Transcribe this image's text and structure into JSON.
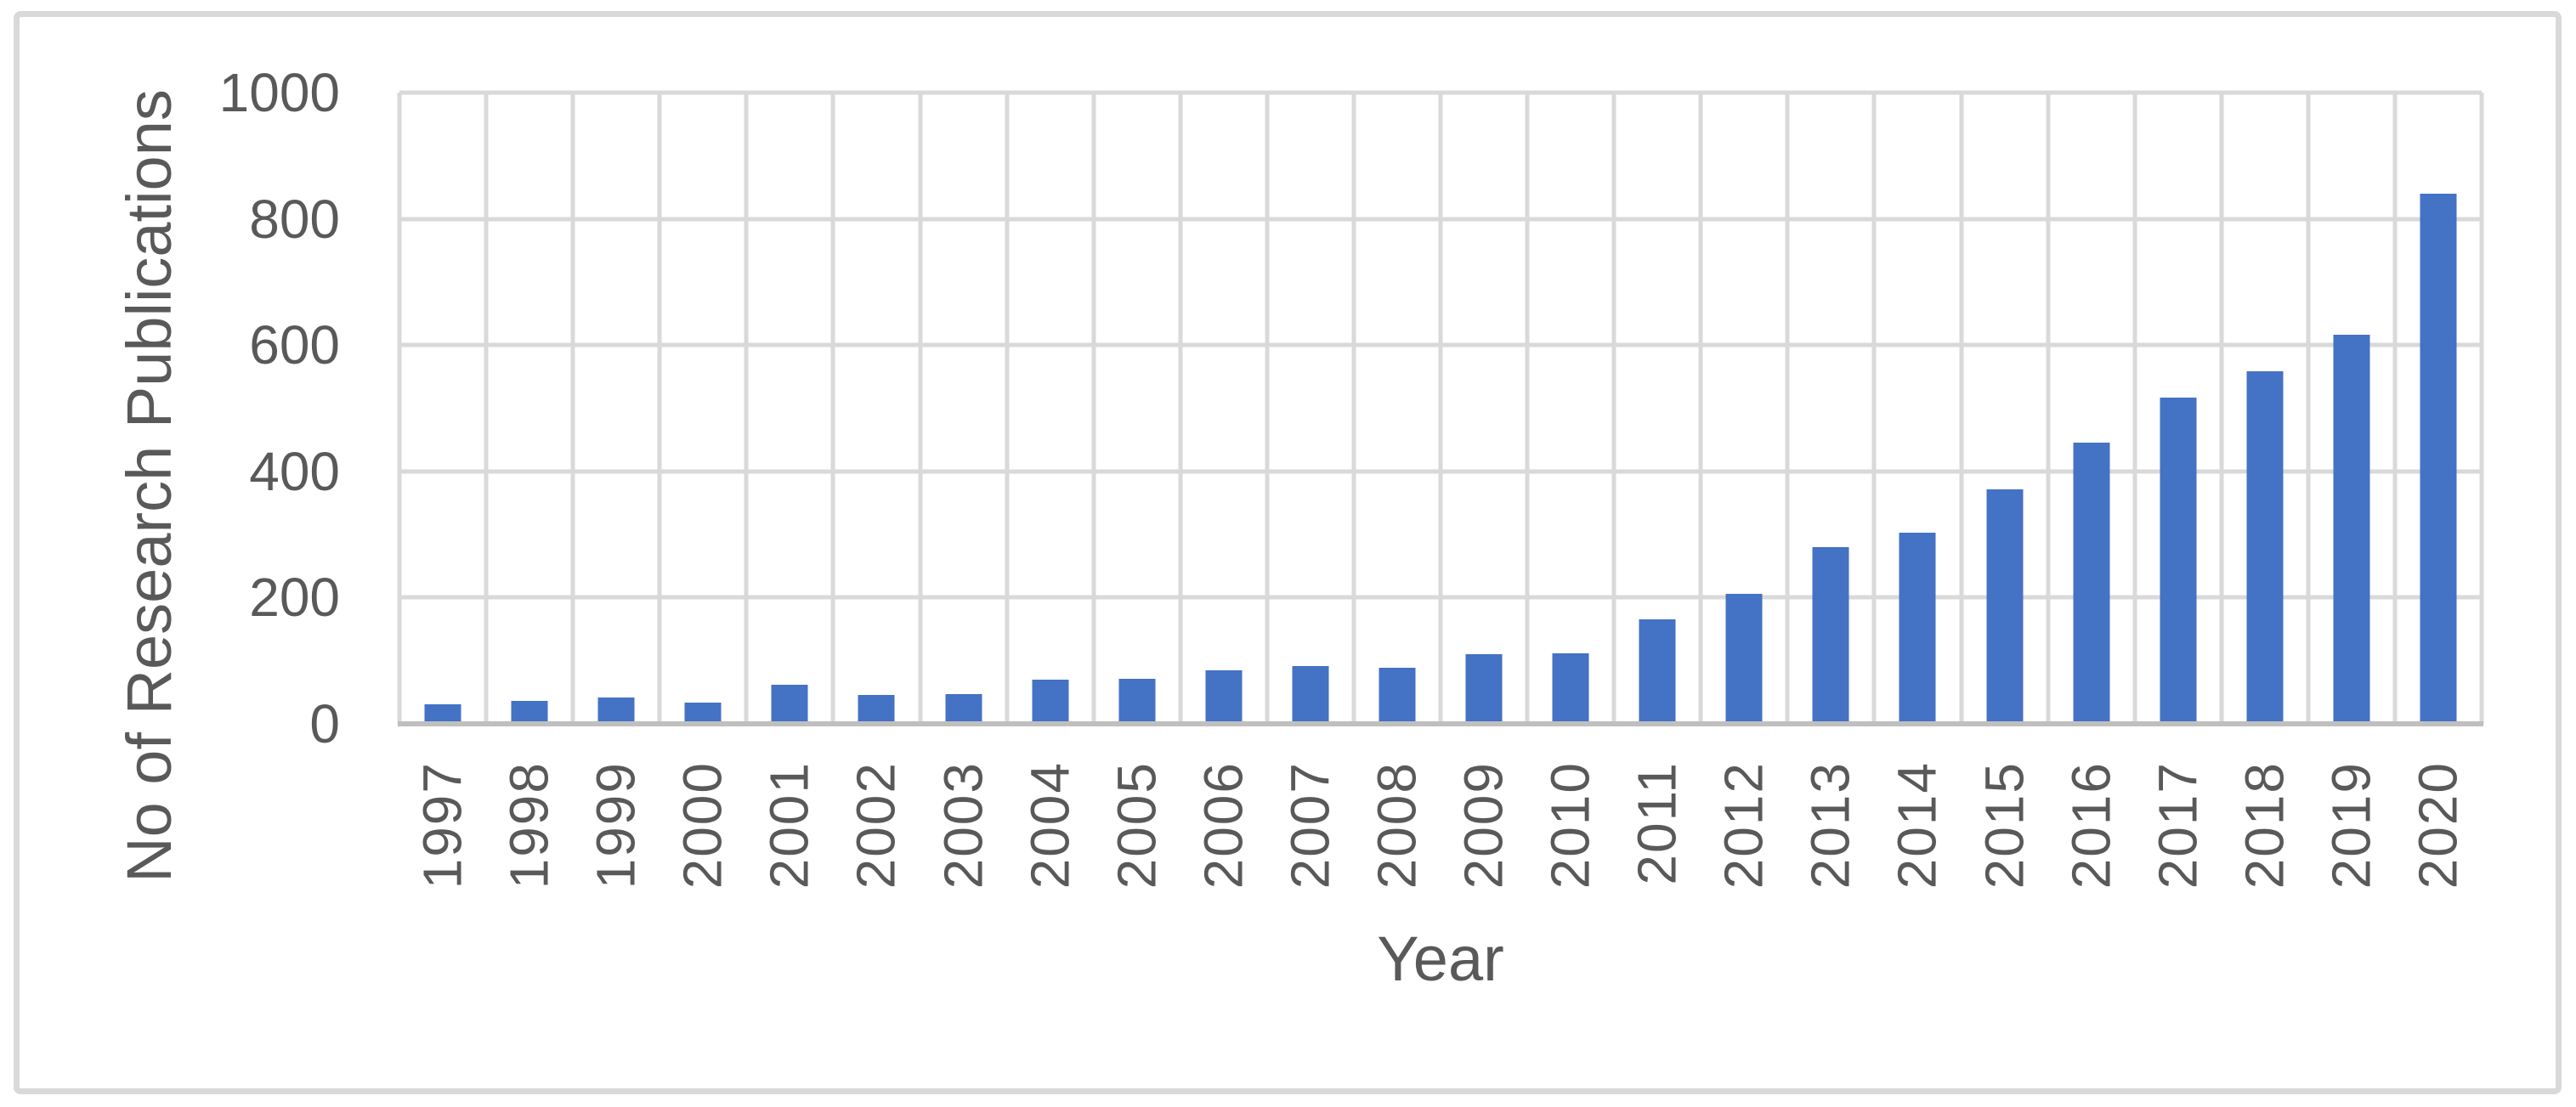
{
  "figure": {
    "background_color": "#FFFFFF",
    "border_color": "#D9D9D9"
  },
  "chart_data": {
    "type": "bar",
    "title": "",
    "xlabel": "Year",
    "ylabel": "No of Research Publications",
    "categories": [
      "1997",
      "1998",
      "1999",
      "2000",
      "2001",
      "2002",
      "2003",
      "2004",
      "2005",
      "2006",
      "2007",
      "2008",
      "2009",
      "2010",
      "2011",
      "2012",
      "2013",
      "2014",
      "2015",
      "2016",
      "2017",
      "2018",
      "2019",
      "2020"
    ],
    "values": [
      31,
      36,
      42,
      33,
      62,
      46,
      47,
      70,
      72,
      85,
      92,
      89,
      110,
      112,
      166,
      206,
      280,
      303,
      371,
      445,
      517,
      558,
      617,
      840
    ],
    "ylim": [
      0,
      1000
    ],
    "yticks": [
      0,
      200,
      400,
      600,
      800,
      1000
    ],
    "grid": "both",
    "legend": "none",
    "bar_color": "#4472C4",
    "gridline_color": "#D9D9D9",
    "axis_line_color": "#BFBFBF",
    "label_color": "#595959"
  }
}
